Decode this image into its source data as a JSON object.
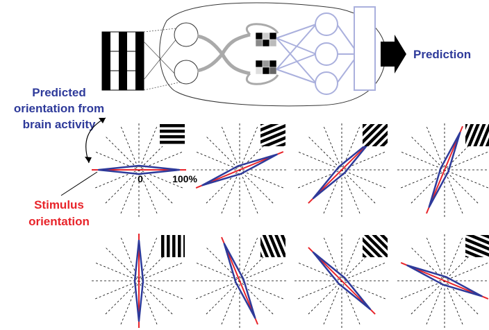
{
  "header": {
    "prediction": "Prediction"
  },
  "labels": {
    "predicted": [
      "Predicted",
      "orientation from",
      "brain activity"
    ],
    "stimulus": [
      "Stimulus",
      "orientation"
    ],
    "axis_zero": "0",
    "axis_max": "100%"
  },
  "panels": [
    {
      "orientation": 0
    },
    {
      "orientation": 22.5
    },
    {
      "orientation": 45
    },
    {
      "orientation": 67.5
    },
    {
      "orientation": 90
    },
    {
      "orientation": 112.5
    },
    {
      "orientation": 135
    },
    {
      "orientation": 157.5
    }
  ]
}
